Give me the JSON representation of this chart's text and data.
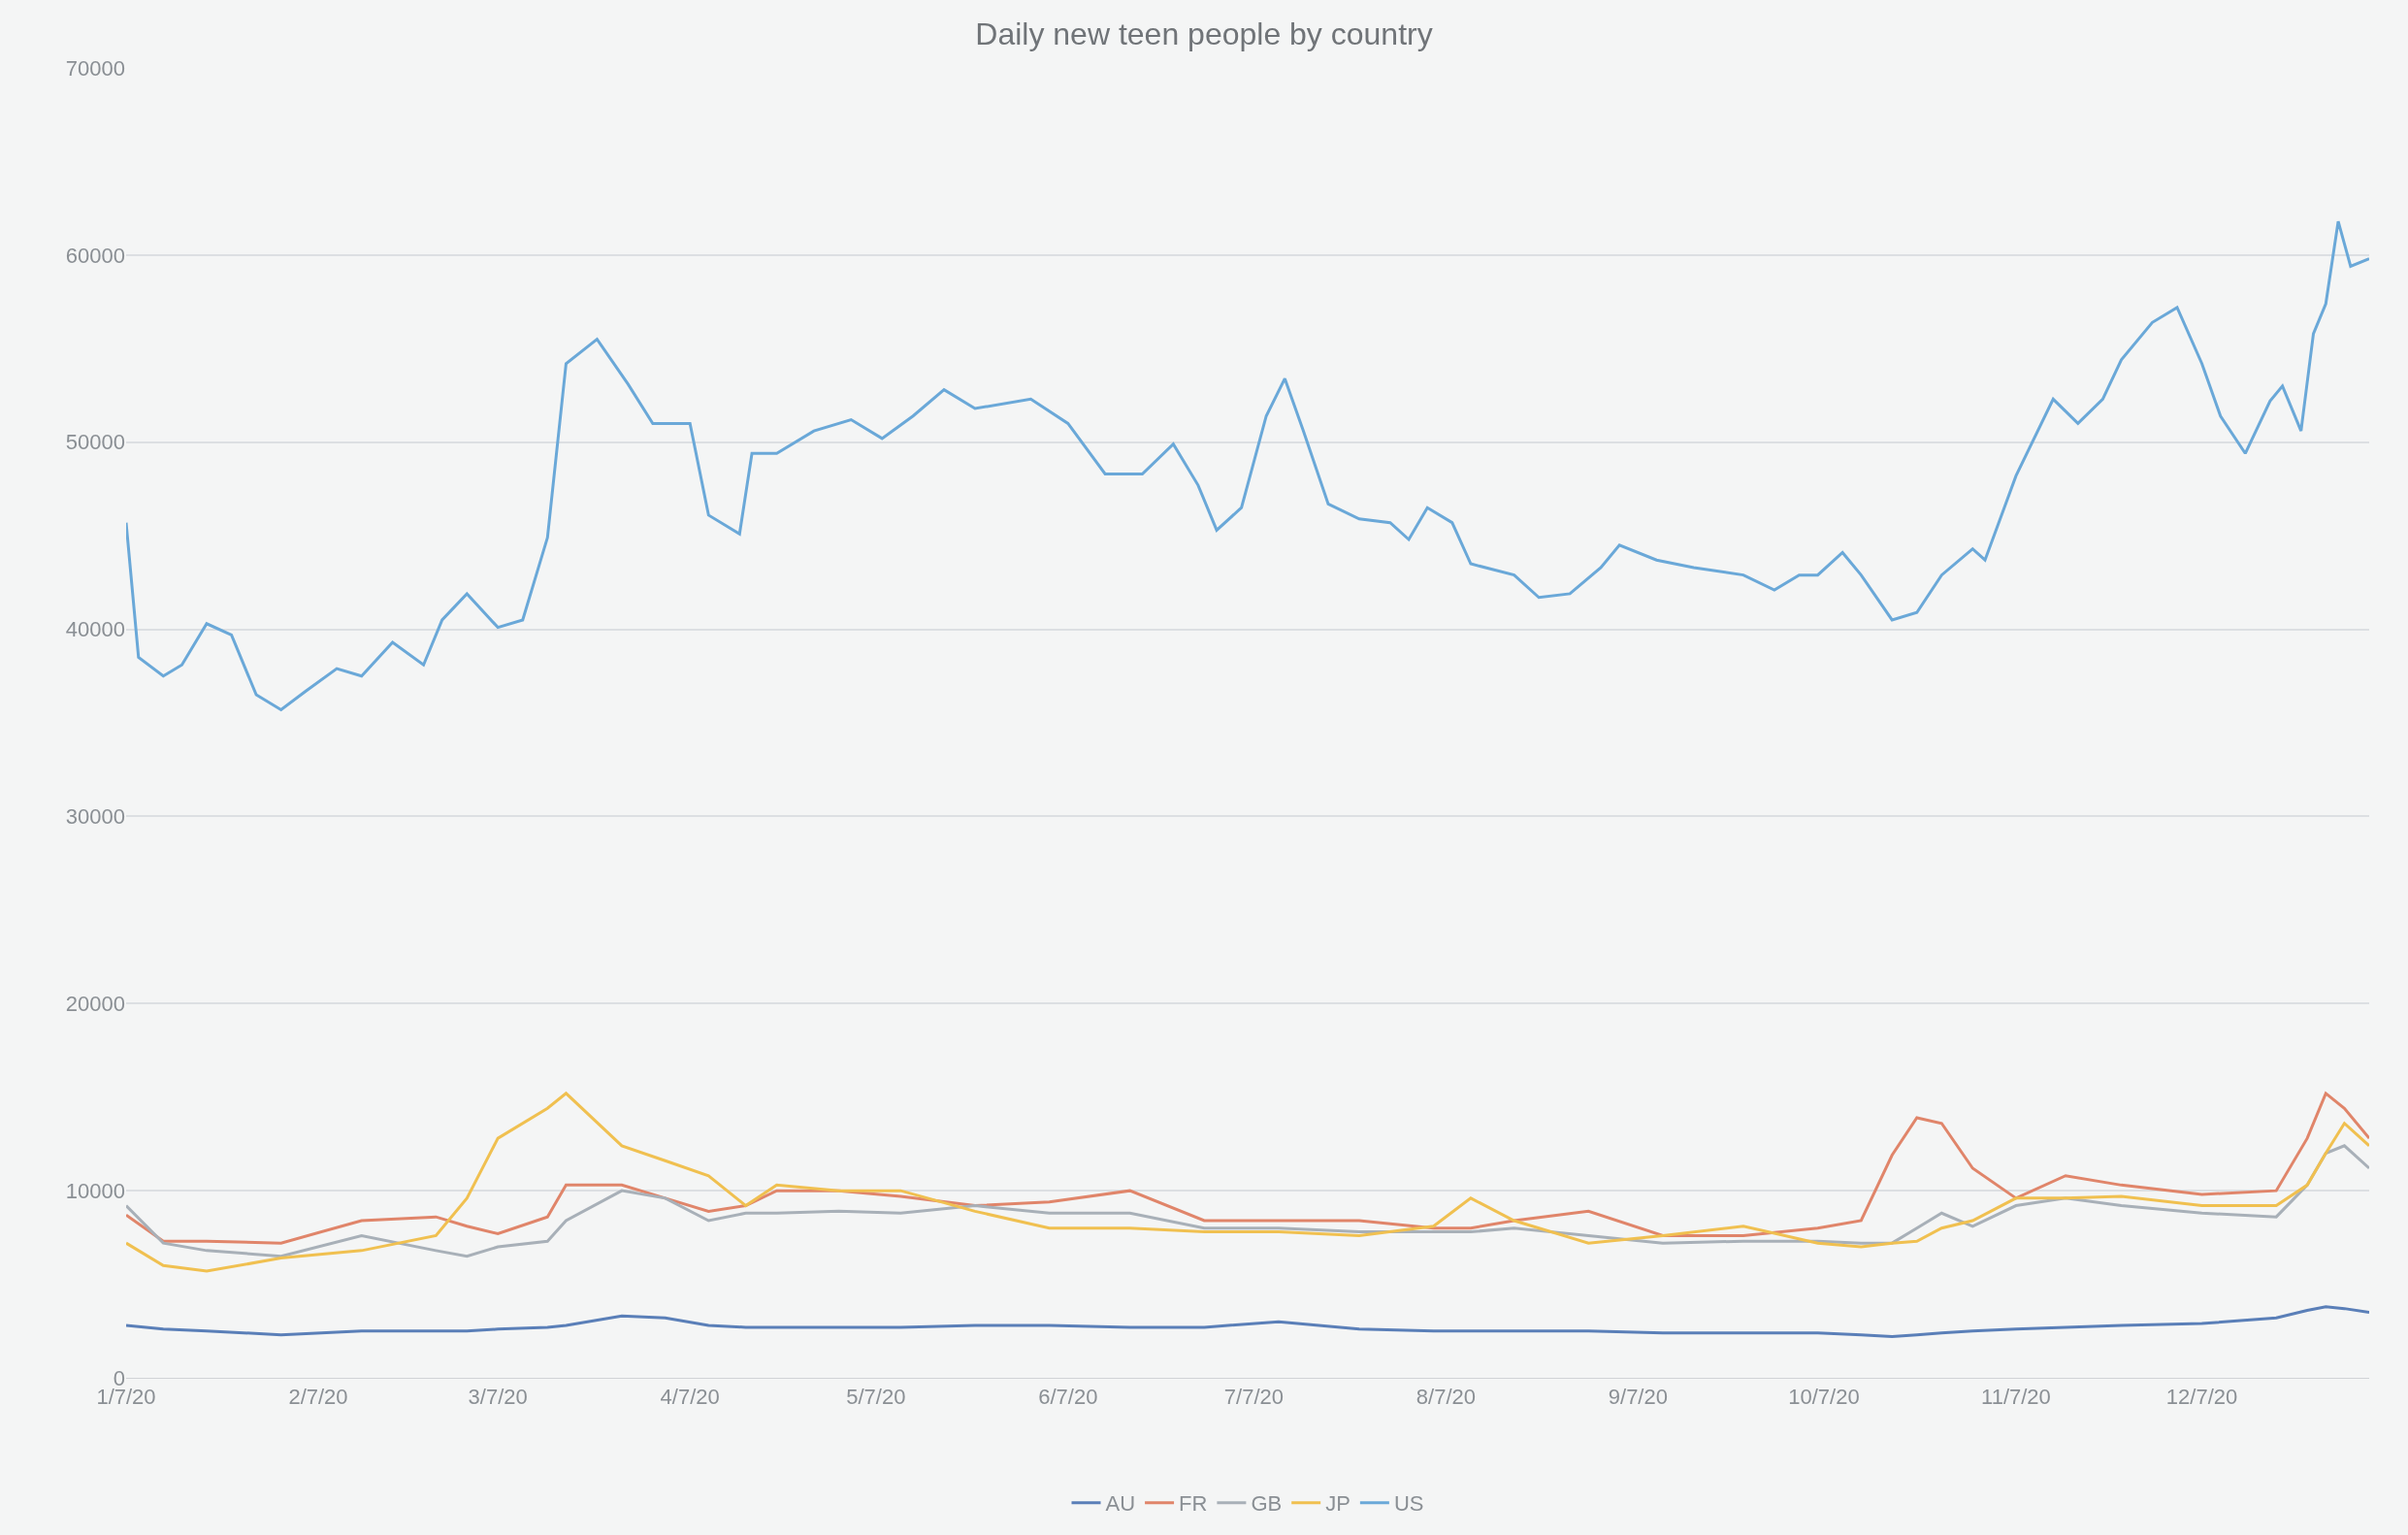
{
  "chart_data": {
    "type": "line",
    "title": "Daily new teen people by country",
    "x": [
      "2020-01-07",
      "2020-01-13",
      "2020-01-20",
      "2020-02-01",
      "2020-02-14",
      "2020-02-26",
      "2020-03-02",
      "2020-03-07",
      "2020-03-15",
      "2020-03-18",
      "2020-03-27",
      "2020-04-03",
      "2020-04-10",
      "2020-04-16",
      "2020-04-21",
      "2020-05-01",
      "2020-05-11",
      "2020-05-23",
      "2020-06-04",
      "2020-06-17",
      "2020-06-29",
      "2020-07-11",
      "2020-07-24",
      "2020-08-05",
      "2020-08-11",
      "2020-08-18",
      "2020-08-30",
      "2020-09-11",
      "2020-09-24",
      "2020-10-06",
      "2020-10-13",
      "2020-10-18",
      "2020-10-22",
      "2020-10-26",
      "2020-10-31",
      "2020-11-07",
      "2020-11-15",
      "2020-11-24",
      "2020-12-07",
      "2020-12-19",
      "2020-12-24",
      "2020-12-27",
      "2020-12-30",
      "2021-01-03"
    ],
    "series": [
      {
        "name": "AU",
        "color": "#5a7fb8",
        "values": [
          2800,
          2600,
          2500,
          2300,
          2500,
          2500,
          2500,
          2600,
          2700,
          2800,
          3300,
          3200,
          2800,
          2700,
          2700,
          2700,
          2700,
          2800,
          2800,
          2700,
          2700,
          3000,
          2600,
          2500,
          2500,
          2500,
          2500,
          2400,
          2400,
          2400,
          2300,
          2200,
          2300,
          2400,
          2500,
          2600,
          2700,
          2800,
          2900,
          3200,
          3600,
          3800,
          3700,
          3500
        ]
      },
      {
        "name": "FR",
        "color": "#e0856a",
        "values": [
          8700,
          7300,
          7300,
          7200,
          8400,
          8600,
          8100,
          7700,
          8600,
          10300,
          10300,
          9600,
          8900,
          9200,
          10000,
          10000,
          9700,
          9200,
          9400,
          10000,
          8400,
          8400,
          8400,
          8000,
          8000,
          8400,
          8900,
          7600,
          7600,
          8000,
          8400,
          11900,
          13900,
          13600,
          11200,
          9600,
          10800,
          10300,
          9800,
          10000,
          12800,
          15200,
          14400,
          12800
        ]
      },
      {
        "name": "GB",
        "color": "#a8b0b8",
        "values": [
          9200,
          7200,
          6800,
          6500,
          7600,
          6800,
          6500,
          7000,
          7300,
          8400,
          10000,
          9600,
          8400,
          8800,
          8800,
          8900,
          8800,
          9200,
          8800,
          8800,
          8000,
          8000,
          7800,
          7800,
          7800,
          8000,
          7600,
          7200,
          7300,
          7300,
          7200,
          7200,
          8000,
          8800,
          8100,
          9200,
          9600,
          9200,
          8800,
          8600,
          10300,
          12000,
          12400,
          11200
        ]
      },
      {
        "name": "JP",
        "color": "#f0c050",
        "values": [
          7200,
          6000,
          5700,
          6400,
          6800,
          7600,
          9600,
          12800,
          14400,
          15200,
          12400,
          11600,
          10800,
          9200,
          10300,
          10000,
          10000,
          8900,
          8000,
          8000,
          7800,
          7800,
          7600,
          8100,
          9600,
          8400,
          7200,
          7600,
          8100,
          7200,
          7000,
          7200,
          7300,
          8000,
          8400,
          9600,
          9600,
          9700,
          9200,
          9200,
          10300,
          12000,
          13600,
          12400
        ]
      },
      {
        "name": "US",
        "color": "#6aa8d8",
        "x": [
          "2020-01-07",
          "2020-01-09",
          "2020-01-13",
          "2020-01-16",
          "2020-01-20",
          "2020-01-24",
          "2020-01-28",
          "2020-02-01",
          "2020-02-05",
          "2020-02-10",
          "2020-02-14",
          "2020-02-19",
          "2020-02-24",
          "2020-02-27",
          "2020-03-02",
          "2020-03-07",
          "2020-03-11",
          "2020-03-15",
          "2020-03-18",
          "2020-03-23",
          "2020-03-28",
          "2020-04-01",
          "2020-04-07",
          "2020-04-10",
          "2020-04-15",
          "2020-04-17",
          "2020-04-21",
          "2020-04-27",
          "2020-05-03",
          "2020-05-08",
          "2020-05-13",
          "2020-05-18",
          "2020-05-23",
          "2020-06-01",
          "2020-06-07",
          "2020-06-13",
          "2020-06-19",
          "2020-06-24",
          "2020-06-28",
          "2020-07-01",
          "2020-07-05",
          "2020-07-09",
          "2020-07-12",
          "2020-07-15",
          "2020-07-19",
          "2020-07-24",
          "2020-07-29",
          "2020-08-01",
          "2020-08-04",
          "2020-08-08",
          "2020-08-11",
          "2020-08-18",
          "2020-08-22",
          "2020-08-27",
          "2020-09-01",
          "2020-09-04",
          "2020-09-10",
          "2020-09-16",
          "2020-09-24",
          "2020-09-29",
          "2020-10-03",
          "2020-10-06",
          "2020-10-10",
          "2020-10-13",
          "2020-10-18",
          "2020-10-22",
          "2020-10-26",
          "2020-10-31",
          "2020-11-02",
          "2020-11-07",
          "2020-11-13",
          "2020-11-17",
          "2020-11-21",
          "2020-11-24",
          "2020-11-29",
          "2020-12-03",
          "2020-12-07",
          "2020-12-10",
          "2020-12-14",
          "2020-12-18",
          "2020-12-20",
          "2020-12-23",
          "2020-12-25",
          "2020-12-27",
          "2020-12-29",
          "2020-12-31",
          "2021-01-03"
        ],
        "values": [
          45700,
          38500,
          37500,
          38100,
          40300,
          39700,
          36500,
          35700,
          36700,
          37900,
          37500,
          39300,
          38100,
          40500,
          41900,
          40100,
          40500,
          44900,
          54200,
          55500,
          53100,
          51000,
          51000,
          46100,
          45100,
          49400,
          49400,
          50600,
          51200,
          50200,
          51400,
          52800,
          51800,
          52300,
          51000,
          48300,
          48300,
          49900,
          47700,
          45300,
          46500,
          51400,
          53400,
          50600,
          46700,
          45900,
          45700,
          44800,
          46500,
          45700,
          43500,
          42900,
          41700,
          41900,
          43300,
          44500,
          43700,
          43300,
          42900,
          42100,
          42900,
          42900,
          44100,
          42900,
          40500,
          40900,
          42900,
          44300,
          43700,
          48200,
          52300,
          51000,
          52300,
          54400,
          56400,
          57200,
          54200,
          51400,
          49400,
          52200,
          53000,
          50600,
          55800,
          57400,
          61800,
          59400,
          59800
        ]
      }
    ],
    "xlim": [
      "2020-01-07",
      "2021-01-03"
    ],
    "xticks": [
      {
        "value": "2020-01-07",
        "label": "1/7/20"
      },
      {
        "value": "2020-02-07",
        "label": "2/7/20"
      },
      {
        "value": "2020-03-07",
        "label": "3/7/20"
      },
      {
        "value": "2020-04-07",
        "label": "4/7/20"
      },
      {
        "value": "2020-05-07",
        "label": "5/7/20"
      },
      {
        "value": "2020-06-07",
        "label": "6/7/20"
      },
      {
        "value": "2020-07-07",
        "label": "7/7/20"
      },
      {
        "value": "2020-08-07",
        "label": "8/7/20"
      },
      {
        "value": "2020-09-07",
        "label": "9/7/20"
      },
      {
        "value": "2020-10-07",
        "label": "10/7/20"
      },
      {
        "value": "2020-11-07",
        "label": "11/7/20"
      },
      {
        "value": "2020-12-07",
        "label": "12/7/20"
      }
    ],
    "ylim": [
      0,
      70000
    ],
    "yticks": [
      0,
      10000,
      20000,
      30000,
      40000,
      50000,
      60000,
      70000
    ],
    "grid": "y",
    "legend": "bottom",
    "marker": "none",
    "line_style": "solid"
  }
}
